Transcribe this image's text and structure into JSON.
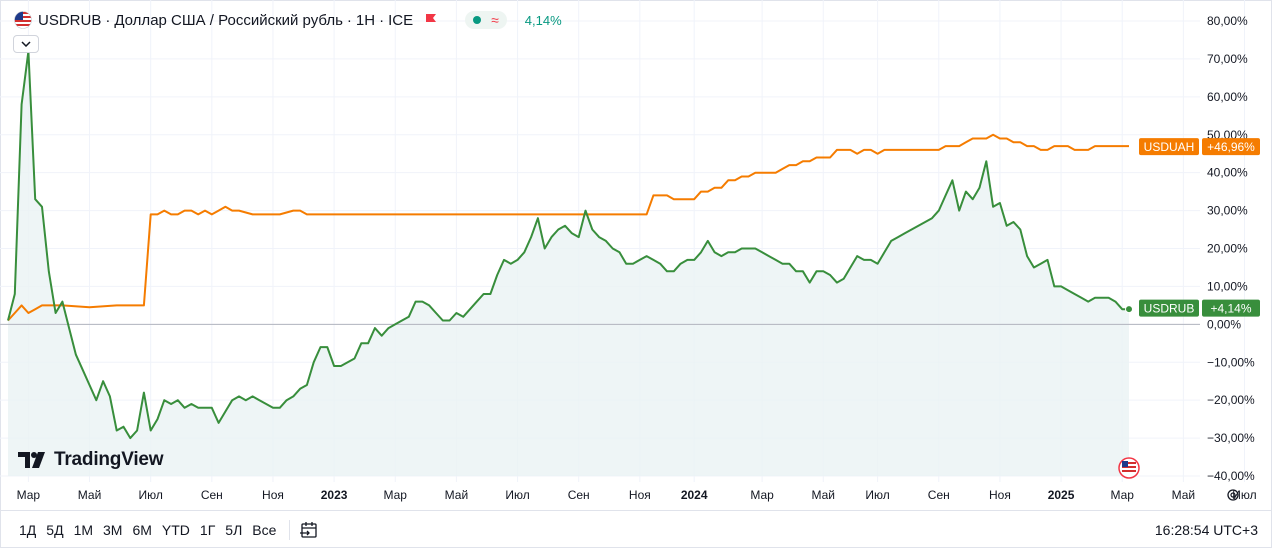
{
  "header": {
    "symbol": "USDRUB",
    "description": "Доллар США / Российский рубль",
    "interval": "1Н",
    "exchange": "ICE",
    "sep": "·",
    "change": "4,14%",
    "approx_symbol": "≈"
  },
  "watermark": {
    "text": "TradingView"
  },
  "toolbar": {
    "ranges": [
      "1Д",
      "5Д",
      "1М",
      "3М",
      "6М",
      "YTD",
      "1Г",
      "5Л",
      "Все"
    ],
    "time": "16:28:54 UTC+3"
  },
  "colors": {
    "usdrub": "#388e3c",
    "usduah": "#f57c00",
    "fill": "#eaf3f4",
    "grid": "#f0f3fa",
    "zero": "#b2b5be",
    "text": "#131722"
  },
  "chart_data": {
    "type": "line",
    "title": "USDRUB · Доллар США / Российский рубль · 1Н · ICE",
    "ylim": [
      -40,
      80
    ],
    "y_unit": "%",
    "y_ticks": [
      "80,00%",
      "70,00%",
      "60,00%",
      "50,00%",
      "40,00%",
      "30,00%",
      "20,00%",
      "10,00%",
      "0,00%",
      "−10,00%",
      "−20,00%",
      "−30,00%",
      "−40,00%"
    ],
    "y_tick_values": [
      80,
      70,
      60,
      50,
      40,
      30,
      20,
      10,
      0,
      -10,
      -20,
      -30,
      -40
    ],
    "x_range": [
      0,
      192
    ],
    "x_ticks": [
      {
        "label": "Мар",
        "x": 3,
        "bold": false
      },
      {
        "label": "Май",
        "x": 12,
        "bold": false
      },
      {
        "label": "Июл",
        "x": 21,
        "bold": false
      },
      {
        "label": "Сен",
        "x": 30,
        "bold": false
      },
      {
        "label": "Ноя",
        "x": 39,
        "bold": false
      },
      {
        "label": "2023",
        "x": 48,
        "bold": true
      },
      {
        "label": "Мар",
        "x": 57,
        "bold": false
      },
      {
        "label": "Май",
        "x": 66,
        "bold": false
      },
      {
        "label": "Июл",
        "x": 75,
        "bold": false
      },
      {
        "label": "Сен",
        "x": 84,
        "bold": false
      },
      {
        "label": "Ноя",
        "x": 93,
        "bold": false
      },
      {
        "label": "2024",
        "x": 101,
        "bold": true
      },
      {
        "label": "Мар",
        "x": 111,
        "bold": false
      },
      {
        "label": "Май",
        "x": 120,
        "bold": false
      },
      {
        "label": "Июл",
        "x": 128,
        "bold": false
      },
      {
        "label": "Сен",
        "x": 137,
        "bold": false
      },
      {
        "label": "Ноя",
        "x": 146,
        "bold": false
      },
      {
        "label": "2025",
        "x": 155,
        "bold": true
      },
      {
        "label": "Мар",
        "x": 164,
        "bold": false
      },
      {
        "label": "Май",
        "x": 173,
        "bold": false
      },
      {
        "label": "Июл",
        "x": 182,
        "bold": false
      }
    ],
    "series": [
      {
        "name": "USDRUB",
        "last_label": "+4,14%",
        "points": [
          [
            0,
            1
          ],
          [
            1,
            8
          ],
          [
            2,
            58
          ],
          [
            3,
            72
          ],
          [
            4,
            33
          ],
          [
            5,
            31
          ],
          [
            6,
            14
          ],
          [
            7,
            3
          ],
          [
            8,
            6
          ],
          [
            9,
            -1
          ],
          [
            10,
            -8
          ],
          [
            11,
            -12
          ],
          [
            12,
            -16
          ],
          [
            13,
            -20
          ],
          [
            14,
            -15
          ],
          [
            15,
            -19
          ],
          [
            16,
            -28
          ],
          [
            17,
            -27
          ],
          [
            18,
            -30
          ],
          [
            19,
            -28
          ],
          [
            20,
            -18
          ],
          [
            21,
            -28
          ],
          [
            22,
            -25
          ],
          [
            23,
            -20
          ],
          [
            24,
            -21
          ],
          [
            25,
            -20
          ],
          [
            26,
            -22
          ],
          [
            27,
            -21
          ],
          [
            28,
            -22
          ],
          [
            29,
            -22
          ],
          [
            30,
            -22
          ],
          [
            31,
            -26
          ],
          [
            32,
            -23
          ],
          [
            33,
            -20
          ],
          [
            34,
            -19
          ],
          [
            35,
            -20
          ],
          [
            36,
            -19
          ],
          [
            37,
            -20
          ],
          [
            38,
            -21
          ],
          [
            39,
            -22
          ],
          [
            40,
            -22
          ],
          [
            41,
            -20
          ],
          [
            42,
            -19
          ],
          [
            43,
            -17
          ],
          [
            44,
            -16
          ],
          [
            45,
            -10
          ],
          [
            46,
            -6
          ],
          [
            47,
            -6
          ],
          [
            48,
            -11
          ],
          [
            49,
            -11
          ],
          [
            50,
            -10
          ],
          [
            51,
            -9
          ],
          [
            52,
            -5
          ],
          [
            53,
            -5
          ],
          [
            54,
            -1
          ],
          [
            55,
            -3
          ],
          [
            56,
            -1
          ],
          [
            57,
            0
          ],
          [
            58,
            1
          ],
          [
            59,
            2
          ],
          [
            60,
            6
          ],
          [
            61,
            6
          ],
          [
            62,
            5
          ],
          [
            63,
            3
          ],
          [
            64,
            1
          ],
          [
            65,
            1
          ],
          [
            66,
            3
          ],
          [
            67,
            2
          ],
          [
            68,
            4
          ],
          [
            69,
            6
          ],
          [
            70,
            8
          ],
          [
            71,
            8
          ],
          [
            72,
            13
          ],
          [
            73,
            17
          ],
          [
            74,
            16
          ],
          [
            75,
            17
          ],
          [
            76,
            19
          ],
          [
            77,
            23
          ],
          [
            78,
            28
          ],
          [
            79,
            20
          ],
          [
            80,
            23
          ],
          [
            81,
            25
          ],
          [
            82,
            26
          ],
          [
            83,
            24
          ],
          [
            84,
            23
          ],
          [
            85,
            30
          ],
          [
            86,
            25
          ],
          [
            87,
            23
          ],
          [
            88,
            22
          ],
          [
            89,
            20
          ],
          [
            90,
            19
          ],
          [
            91,
            16
          ],
          [
            92,
            16
          ],
          [
            93,
            17
          ],
          [
            94,
            18
          ],
          [
            95,
            17
          ],
          [
            96,
            16
          ],
          [
            97,
            14
          ],
          [
            98,
            14
          ],
          [
            99,
            16
          ],
          [
            100,
            17
          ],
          [
            101,
            17
          ],
          [
            102,
            19
          ],
          [
            103,
            22
          ],
          [
            104,
            19
          ],
          [
            105,
            18
          ],
          [
            106,
            19
          ],
          [
            107,
            19
          ],
          [
            108,
            20
          ],
          [
            109,
            20
          ],
          [
            110,
            20
          ],
          [
            111,
            19
          ],
          [
            112,
            18
          ],
          [
            113,
            17
          ],
          [
            114,
            16
          ],
          [
            115,
            16
          ],
          [
            116,
            14
          ],
          [
            117,
            14
          ],
          [
            118,
            11
          ],
          [
            119,
            14
          ],
          [
            120,
            14
          ],
          [
            121,
            13
          ],
          [
            122,
            11
          ],
          [
            123,
            12
          ],
          [
            124,
            15
          ],
          [
            125,
            18
          ],
          [
            126,
            17
          ],
          [
            127,
            17
          ],
          [
            128,
            16
          ],
          [
            129,
            19
          ],
          [
            130,
            22
          ],
          [
            131,
            23
          ],
          [
            132,
            24
          ],
          [
            133,
            25
          ],
          [
            134,
            26
          ],
          [
            135,
            27
          ],
          [
            136,
            28
          ],
          [
            137,
            30
          ],
          [
            138,
            34
          ],
          [
            139,
            38
          ],
          [
            140,
            30
          ],
          [
            141,
            35
          ],
          [
            142,
            33
          ],
          [
            143,
            36
          ],
          [
            144,
            43
          ],
          [
            145,
            31
          ],
          [
            146,
            32
          ],
          [
            147,
            26
          ],
          [
            148,
            27
          ],
          [
            149,
            25
          ],
          [
            150,
            18
          ],
          [
            151,
            15
          ],
          [
            152,
            16
          ],
          [
            153,
            17
          ],
          [
            154,
            10
          ],
          [
            155,
            10
          ],
          [
            156,
            9
          ],
          [
            157,
            8
          ],
          [
            158,
            7
          ],
          [
            159,
            6
          ],
          [
            160,
            7
          ],
          [
            161,
            7
          ],
          [
            162,
            7
          ],
          [
            163,
            6
          ],
          [
            164,
            4
          ],
          [
            165,
            4
          ]
        ]
      },
      {
        "name": "USDUAH",
        "last_label": "+46,96%",
        "points": [
          [
            0,
            1
          ],
          [
            1,
            3
          ],
          [
            2,
            5
          ],
          [
            3,
            3
          ],
          [
            4,
            4
          ],
          [
            5,
            5
          ],
          [
            8,
            5
          ],
          [
            12,
            4.5
          ],
          [
            16,
            5
          ],
          [
            20,
            5
          ],
          [
            21,
            29
          ],
          [
            22,
            29
          ],
          [
            23,
            30
          ],
          [
            24,
            29
          ],
          [
            25,
            29
          ],
          [
            26,
            30
          ],
          [
            27,
            30
          ],
          [
            28,
            29
          ],
          [
            29,
            30
          ],
          [
            30,
            29
          ],
          [
            31,
            30
          ],
          [
            32,
            31
          ],
          [
            33,
            30
          ],
          [
            34,
            30
          ],
          [
            36,
            29
          ],
          [
            38,
            29
          ],
          [
            40,
            29
          ],
          [
            42,
            30
          ],
          [
            43,
            30
          ],
          [
            44,
            29
          ],
          [
            50,
            29
          ],
          [
            60,
            29
          ],
          [
            70,
            29
          ],
          [
            80,
            29
          ],
          [
            85,
            29
          ],
          [
            90,
            29
          ],
          [
            94,
            29
          ],
          [
            95,
            34
          ],
          [
            96,
            34
          ],
          [
            97,
            34
          ],
          [
            98,
            33
          ],
          [
            99,
            33
          ],
          [
            100,
            33
          ],
          [
            101,
            33
          ],
          [
            102,
            35
          ],
          [
            103,
            35
          ],
          [
            104,
            36
          ],
          [
            105,
            36
          ],
          [
            106,
            38
          ],
          [
            107,
            38
          ],
          [
            108,
            39
          ],
          [
            109,
            39
          ],
          [
            110,
            40
          ],
          [
            111,
            40
          ],
          [
            112,
            40
          ],
          [
            113,
            40
          ],
          [
            114,
            41
          ],
          [
            115,
            42
          ],
          [
            116,
            42
          ],
          [
            117,
            43
          ],
          [
            118,
            43
          ],
          [
            119,
            44
          ],
          [
            120,
            44
          ],
          [
            121,
            44
          ],
          [
            122,
            46
          ],
          [
            123,
            46
          ],
          [
            124,
            46
          ],
          [
            125,
            45
          ],
          [
            126,
            46
          ],
          [
            127,
            46
          ],
          [
            128,
            45
          ],
          [
            129,
            46
          ],
          [
            130,
            46
          ],
          [
            131,
            46
          ],
          [
            132,
            46
          ],
          [
            133,
            46
          ],
          [
            134,
            46
          ],
          [
            135,
            46
          ],
          [
            136,
            46
          ],
          [
            137,
            46
          ],
          [
            138,
            47
          ],
          [
            139,
            47
          ],
          [
            140,
            47
          ],
          [
            141,
            48
          ],
          [
            142,
            49
          ],
          [
            143,
            49
          ],
          [
            144,
            49
          ],
          [
            145,
            50
          ],
          [
            146,
            49
          ],
          [
            147,
            49
          ],
          [
            148,
            48
          ],
          [
            149,
            48
          ],
          [
            150,
            47
          ],
          [
            151,
            47
          ],
          [
            152,
            46
          ],
          [
            153,
            46
          ],
          [
            154,
            47
          ],
          [
            155,
            47
          ],
          [
            156,
            47
          ],
          [
            157,
            46
          ],
          [
            158,
            46
          ],
          [
            159,
            46
          ],
          [
            160,
            47
          ],
          [
            161,
            47
          ],
          [
            162,
            47
          ],
          [
            163,
            47
          ],
          [
            164,
            47
          ],
          [
            165,
            47
          ]
        ]
      }
    ]
  }
}
